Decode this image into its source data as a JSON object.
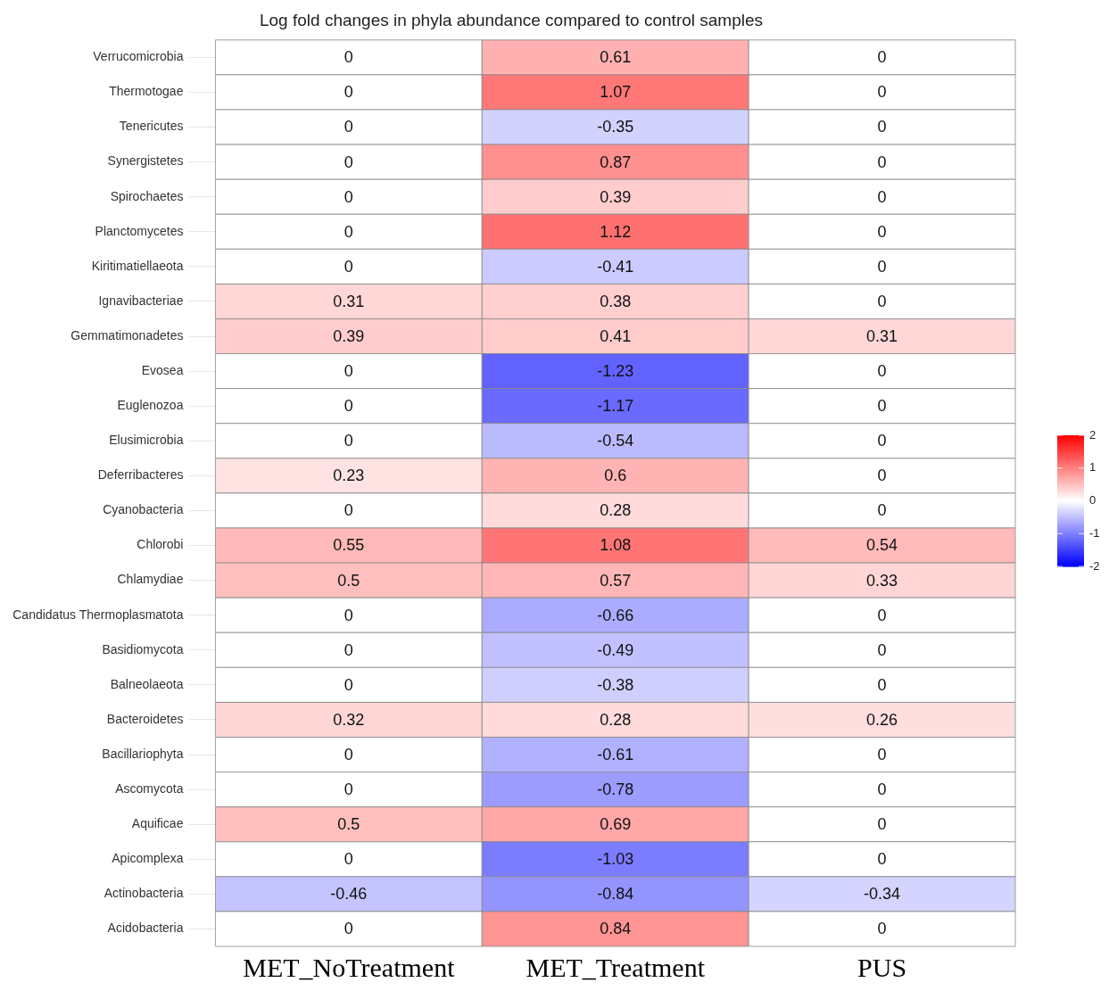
{
  "chart_data": {
    "type": "heatmap",
    "title": "Log fold changes in phyla abundance compared to control samples",
    "categories": [
      "MET_NoTreatment",
      "MET_Treatment",
      "PUS"
    ],
    "y_categories": [
      "Verrucomicrobia",
      "Thermotogae",
      "Tenericutes",
      "Synergistetes",
      "Spirochaetes",
      "Planctomycetes",
      "Kiritimatiellaeota",
      "Ignavibacteriae",
      "Gemmatimonadetes",
      "Evosea",
      "Euglenozoa",
      "Elusimicrobia",
      "Deferribacteres",
      "Cyanobacteria",
      "Chlorobi",
      "Chlamydiae",
      "Candidatus Thermoplasmatota",
      "Basidiomycota",
      "Balneolaeota",
      "Bacteroidetes",
      "Bacillariophyta",
      "Ascomycota",
      "Aquificae",
      "Apicomplexa",
      "Actinobacteria",
      "Acidobacteria"
    ],
    "cells": [
      [
        0,
        0.61,
        0
      ],
      [
        0,
        1.07,
        0
      ],
      [
        0,
        -0.35,
        0
      ],
      [
        0,
        0.87,
        0
      ],
      [
        0,
        0.39,
        0
      ],
      [
        0,
        1.12,
        0
      ],
      [
        0,
        -0.41,
        0
      ],
      [
        0.31,
        0.38,
        0
      ],
      [
        0.39,
        0.41,
        0.31
      ],
      [
        0,
        -1.23,
        0
      ],
      [
        0,
        -1.17,
        0
      ],
      [
        0,
        -0.54,
        0
      ],
      [
        0.23,
        0.6,
        0
      ],
      [
        0,
        0.28,
        0
      ],
      [
        0.55,
        1.08,
        0.54
      ],
      [
        0.5,
        0.57,
        0.33
      ],
      [
        0,
        -0.66,
        0
      ],
      [
        0,
        -0.49,
        0
      ],
      [
        0,
        -0.38,
        0
      ],
      [
        0.32,
        0.28,
        0.26
      ],
      [
        0,
        -0.61,
        0
      ],
      [
        0,
        -0.78,
        0
      ],
      [
        0.5,
        0.69,
        0
      ],
      [
        0,
        -1.03,
        0
      ],
      [
        -0.46,
        -0.84,
        -0.34
      ],
      [
        0,
        0.84,
        0
      ]
    ],
    "clim": [
      -2,
      2
    ],
    "cticks": [
      2,
      1,
      0,
      -1,
      -2
    ],
    "data_labels": true
  }
}
